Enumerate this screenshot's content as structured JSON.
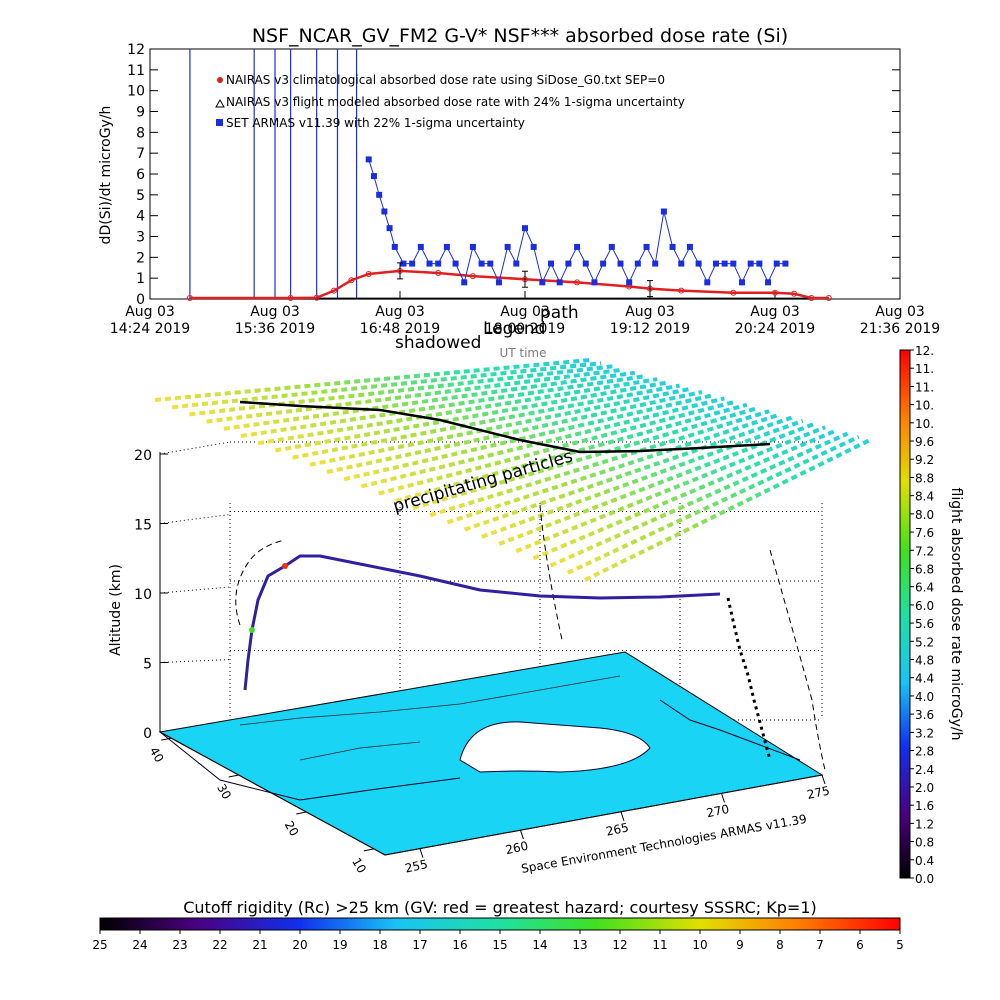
{
  "title": "NSF_NCAR_GV_FM2 G-V* NSF*** absorbed dose rate (Si)",
  "chart_data": [
    {
      "type": "line",
      "ylabel": "dD(Si)/dt microGy/h",
      "ylim": [
        0,
        12
      ],
      "yticks": [
        "0",
        "1",
        "2",
        "3",
        "4",
        "5",
        "6",
        "7",
        "8",
        "9",
        "10",
        "11",
        "12"
      ],
      "xlabel": "UT time",
      "xticks": [
        {
          "date": "Aug 03",
          "time": "14:24 2019"
        },
        {
          "date": "Aug 03",
          "time": "15:36 2019"
        },
        {
          "date": "Aug 03",
          "time": "16:48 2019"
        },
        {
          "date": "Aug 03",
          "time": "18:00 2019"
        },
        {
          "date": "Aug 03",
          "time": "19:12 2019"
        },
        {
          "date": "Aug 03",
          "time": "20:24 2019"
        },
        {
          "date": "Aug 03",
          "time": "21:36 2019"
        }
      ],
      "legend": [
        "NAIRAS v3 climatological absorbed dose rate using SiDose_G0.txt SEP=0",
        "NAIRAS v3 flight modeled absorbed dose rate with 24% 1-sigma uncertainty",
        "SET ARMAS v11.39 with 22% 1-sigma uncertainty"
      ],
      "overlay_labels": [
        "shadowed",
        "Legend",
        "path"
      ],
      "series": [
        {
          "name": "NAIRAS v3 climatological absorbed dose rate using SiDose_G0.txt SEP=0",
          "color": "#e02020",
          "x": [
            "14:47",
            "15:45",
            "16:00",
            "16:10",
            "16:20",
            "16:30",
            "16:48",
            "17:10",
            "17:30",
            "18:00",
            "18:30",
            "19:00",
            "19:12",
            "19:30",
            "20:00",
            "20:24",
            "20:35",
            "20:45",
            "20:55"
          ],
          "values": [
            0.05,
            0.05,
            0.06,
            0.4,
            0.9,
            1.2,
            1.35,
            1.25,
            1.1,
            0.95,
            0.8,
            0.6,
            0.5,
            0.4,
            0.3,
            0.3,
            0.25,
            0.05,
            0.05
          ]
        },
        {
          "name": "SET ARMAS v11.39 with 22% 1-sigma uncertainty",
          "color": "#1a2ee0",
          "x": [
            "16:30",
            "16:33",
            "16:36",
            "16:39",
            "16:42",
            "16:45",
            "16:50",
            "16:55",
            "17:00",
            "17:05",
            "17:10",
            "17:15",
            "17:20",
            "17:25",
            "17:30",
            "17:35",
            "17:40",
            "17:45",
            "17:50",
            "17:55",
            "18:00",
            "18:05",
            "18:10",
            "18:15",
            "18:20",
            "18:25",
            "18:30",
            "18:35",
            "18:40",
            "18:45",
            "18:50",
            "18:55",
            "19:00",
            "19:05",
            "19:10",
            "19:15",
            "19:20",
            "19:25",
            "19:30",
            "19:35",
            "19:40",
            "19:45",
            "19:50",
            "19:55",
            "20:00",
            "20:05",
            "20:10",
            "20:15",
            "20:20",
            "20:25",
            "20:30"
          ],
          "values": [
            6.7,
            5.9,
            5.0,
            4.2,
            3.4,
            2.5,
            1.7,
            1.7,
            2.5,
            1.7,
            1.7,
            2.5,
            1.7,
            0.8,
            2.5,
            1.7,
            1.7,
            0.8,
            2.5,
            1.7,
            3.4,
            2.5,
            0.8,
            1.7,
            0.8,
            1.7,
            2.5,
            1.7,
            0.8,
            1.7,
            2.5,
            1.7,
            0.8,
            1.7,
            2.5,
            1.7,
            4.2,
            2.5,
            1.7,
            2.5,
            1.7,
            0.8,
            1.7,
            1.7,
            1.7,
            0.8,
            1.7,
            1.7,
            0.8,
            1.7,
            1.7
          ]
        }
      ]
    },
    {
      "type": "scatter",
      "ylabel": "Altitude (km)",
      "zticks": [
        "0",
        "5",
        "10",
        "15",
        "20"
      ],
      "lat_ticks": [
        "40",
        "30",
        "20",
        "10"
      ],
      "lon_ticks": [
        "255",
        "260",
        "265",
        "270",
        "275"
      ],
      "annotation": "precipitating particles",
      "credit": "Space Environment Technologies ARMAS v11.39"
    },
    {
      "type": "heatmap",
      "label": "flight absorbed dose rate microGy/h",
      "ticks": [
        "0.0",
        "0.4",
        "0.8",
        "1.2",
        "1.6",
        "2.0",
        "2.4",
        "2.8",
        "3.2",
        "3.6",
        "4.0",
        "4.4",
        "4.8",
        "5.2",
        "5.6",
        "6.0",
        "6.4",
        "6.8",
        "7.2",
        "7.6",
        "8.0",
        "8.4",
        "8.8",
        "9.2",
        "9.6",
        "10.",
        "10.",
        "11.",
        "11.",
        "12."
      ]
    },
    {
      "type": "heatmap",
      "label": "Cutoff rigidity (Rc) >25 km (GV: red = greatest hazard; courtesy SSSRC; Kp=1)",
      "ticks": [
        "25",
        "24",
        "23",
        "22",
        "21",
        "20",
        "19",
        "18",
        "17",
        "16",
        "15",
        "14",
        "13",
        "12",
        "11",
        "10",
        "9",
        "8",
        "7",
        "6",
        "5"
      ]
    }
  ]
}
